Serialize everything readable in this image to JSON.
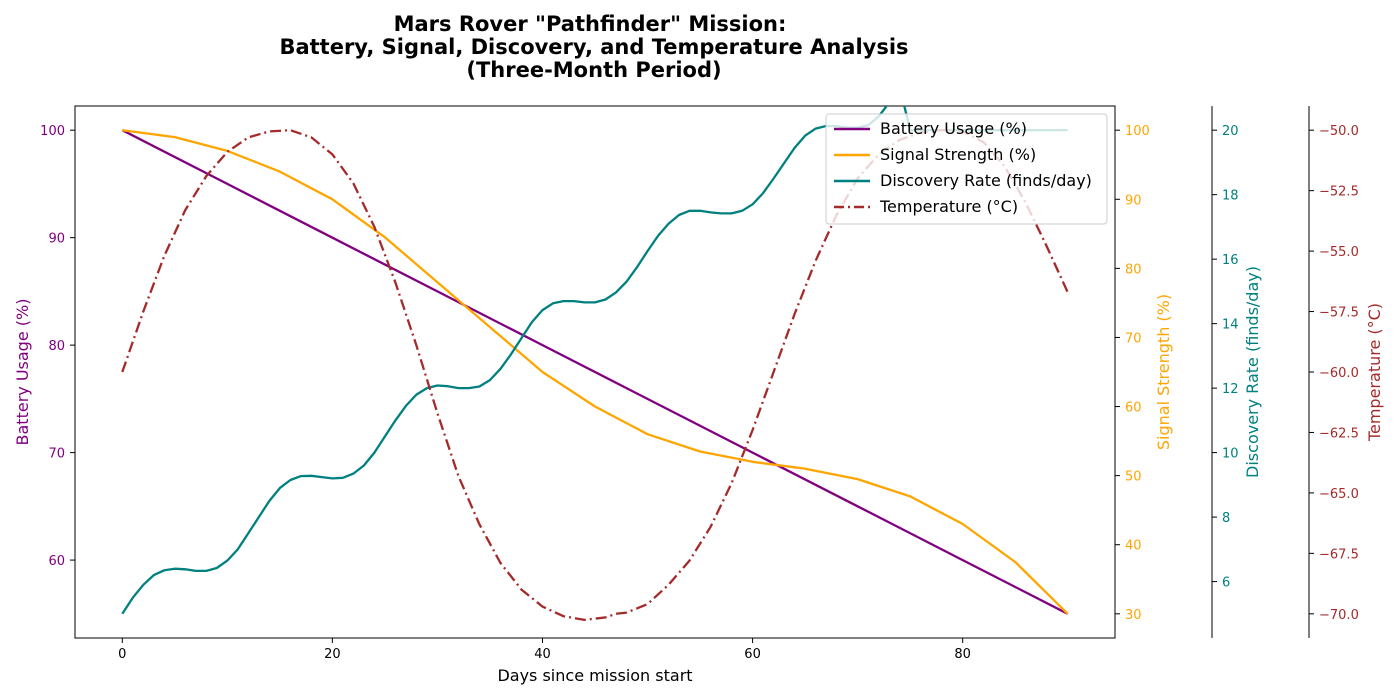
{
  "chart_data": {
    "type": "line",
    "title": [
      "Mars Rover \"Pathfinder\" Mission:",
      "Battery, Signal, Discovery, and Temperature Analysis",
      "(Three-Month Period)"
    ],
    "xlabel": "Days since mission start",
    "xlim": [
      -4.5,
      94.5
    ],
    "xticks": [
      0,
      20,
      40,
      60,
      80
    ],
    "legend_position": "upper-right",
    "series": [
      {
        "name": "Battery Usage (%)",
        "axis": "battery",
        "color": "#800080",
        "dash": "solid",
        "x": [
          0,
          10,
          20,
          30,
          40,
          50,
          60,
          70,
          80,
          90
        ],
        "y": [
          100,
          95,
          90,
          85,
          80,
          75,
          70,
          65,
          60,
          55
        ]
      },
      {
        "name": "Signal Strength (%)",
        "axis": "signal",
        "color": "#FFA500",
        "dash": "solid",
        "x": [
          0,
          5,
          10,
          15,
          20,
          25,
          30,
          35,
          40,
          45,
          50,
          55,
          60,
          65,
          70,
          75,
          80,
          85,
          90
        ],
        "y": [
          100,
          99,
          97,
          94,
          90,
          84.5,
          78,
          71.5,
          65,
          60,
          56,
          53.5,
          52,
          51,
          49.5,
          47,
          43,
          37.5,
          30
        ]
      },
      {
        "name": "Discovery Rate (finds/day)",
        "axis": "discovery",
        "color": "#008080",
        "dash": "solid",
        "x": [
          0,
          1,
          2,
          3,
          4,
          5,
          6,
          7,
          8,
          9,
          10,
          11,
          12,
          13,
          14,
          15,
          16,
          17,
          18,
          19,
          20,
          21,
          22,
          23,
          24,
          25,
          26,
          27,
          28,
          29,
          30,
          31,
          32,
          33,
          34,
          35,
          36,
          37,
          38,
          39,
          40,
          41,
          42,
          43,
          44,
          45,
          46,
          47,
          48,
          49,
          50,
          51,
          52,
          53,
          54,
          55,
          56,
          57,
          58,
          59,
          60,
          61,
          62,
          63,
          64,
          65,
          66,
          67,
          68,
          69,
          70,
          71,
          72,
          73,
          74,
          75,
          76,
          80,
          85,
          90
        ],
        "y": [
          5.0,
          5.5,
          5.9,
          6.2,
          6.35,
          6.4,
          6.38,
          6.33,
          6.33,
          6.42,
          6.65,
          7.0,
          7.5,
          8.0,
          8.5,
          8.9,
          9.15,
          9.27,
          9.28,
          9.24,
          9.2,
          9.22,
          9.35,
          9.6,
          10.0,
          10.5,
          11.0,
          11.45,
          11.8,
          12.0,
          12.08,
          12.06,
          12.0,
          12.0,
          12.05,
          12.25,
          12.6,
          13.05,
          13.55,
          14.05,
          14.42,
          14.63,
          14.7,
          14.7,
          14.66,
          14.66,
          14.75,
          14.97,
          15.3,
          15.75,
          16.25,
          16.72,
          17.1,
          17.37,
          17.5,
          17.5,
          17.45,
          17.42,
          17.42,
          17.5,
          17.7,
          18.05,
          18.5,
          18.98,
          19.45,
          19.83,
          20.05,
          20.13,
          20.13,
          20.08,
          20.08,
          20.15,
          20.42,
          20.85,
          21.35,
          20.0,
          20.0,
          20.0,
          20.0,
          20.0
        ]
      },
      {
        "name": "Temperature (°C)",
        "axis": "temperature",
        "color": "#A52A2A",
        "dash": "dashdot",
        "x": [
          0,
          2,
          4,
          6,
          8,
          10,
          12,
          14,
          16,
          18,
          20,
          22,
          24,
          26,
          28,
          30,
          32,
          34,
          36,
          38,
          40,
          42,
          44,
          46,
          47,
          48,
          50,
          52,
          54,
          56,
          58,
          60,
          62,
          64,
          66,
          68,
          70,
          72,
          74,
          76,
          78,
          79,
          80,
          82,
          84,
          86,
          88,
          90
        ],
        "y": [
          -60,
          -57.5,
          -55.2,
          -53.3,
          -51.9,
          -50.9,
          -50.3,
          -50.05,
          -50,
          -50.3,
          -51,
          -52.2,
          -54,
          -56.3,
          -58.9,
          -61.7,
          -64.3,
          -66.3,
          -67.9,
          -69,
          -69.7,
          -70.1,
          -70.25,
          -70.15,
          -70,
          -69.95,
          -69.6,
          -68.8,
          -67.8,
          -66.4,
          -64.6,
          -62.4,
          -60,
          -57.6,
          -55.4,
          -53.5,
          -52,
          -51,
          -50.4,
          -50.1,
          -50,
          -50,
          -50.05,
          -50.5,
          -51.5,
          -53,
          -54.8,
          -56.7
        ]
      }
    ],
    "axes": {
      "battery": {
        "label": "Battery Usage (%)",
        "color": "#800080",
        "ylim": [
          52.75,
          102.25
        ],
        "ticks": [
          60,
          70,
          80,
          90,
          100
        ]
      },
      "signal": {
        "label": "Signal Strength (%)",
        "color": "#FFA500",
        "ylim": [
          26.5,
          103.5
        ],
        "ticks": [
          30,
          40,
          50,
          60,
          70,
          80,
          90,
          100
        ]
      },
      "discovery": {
        "label": "Discovery Rate (finds/day)",
        "color": "#008080",
        "ylim": [
          4.25,
          20.75
        ],
        "ticks": [
          6,
          8,
          10,
          12,
          14,
          16,
          18,
          20
        ]
      },
      "temperature": {
        "label": "Temperature (°C)",
        "color": "#A52A2A",
        "ylim": [
          -71.0,
          -49.0
        ],
        "ticks": [
          -70.0,
          -67.5,
          -65.0,
          -62.5,
          -60.0,
          -57.5,
          -55.0,
          -52.5,
          -50.0
        ],
        "tick_labels": [
          "−70.0",
          "−67.5",
          "−65.0",
          "−62.5",
          "−60.0",
          "−57.5",
          "−55.0",
          "−52.5",
          "−50.0"
        ]
      }
    }
  }
}
